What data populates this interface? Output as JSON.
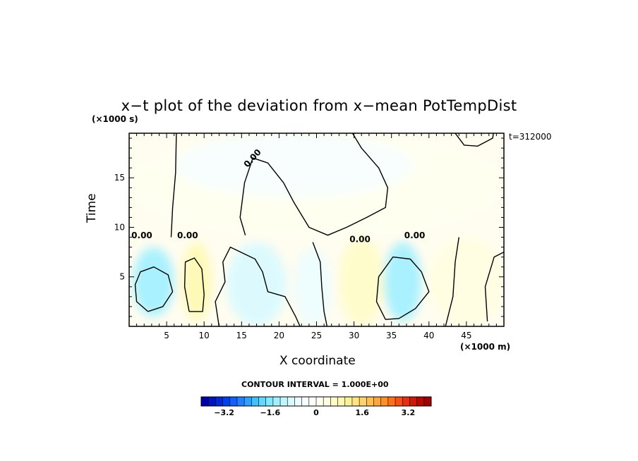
{
  "chart_data": {
    "type": "heatmap",
    "title": "x−t plot of the deviation from x−mean PotTempDist",
    "xlabel": "X coordinate",
    "ylabel": "Time",
    "x_unit_label": "(×1000 m)",
    "y_unit_label": "(×1000 s)",
    "time_stamp": "t=312000",
    "xlim": [
      0,
      50
    ],
    "ylim": [
      0,
      19.5
    ],
    "x_ticks": [
      5,
      10,
      15,
      20,
      25,
      30,
      35,
      40,
      45
    ],
    "y_ticks": [
      5,
      10,
      15
    ],
    "contour_interval_label": "CONTOUR INTERVAL = 1.000E+00",
    "contour_label": "0.00",
    "colorbar": {
      "range": [
        -4.0,
        4.0
      ],
      "tick_labels": [
        "−3.2",
        "−1.6",
        "0",
        "1.6",
        "3.2"
      ],
      "tick_values": [
        -3.2,
        -1.6,
        0,
        1.6,
        3.2
      ],
      "colors": [
        "#0000a8",
        "#0014c0",
        "#0028d8",
        "#0040f0",
        "#1060ff",
        "#2080ff",
        "#30a0ff",
        "#40c0ff",
        "#60d8ff",
        "#80e8ff",
        "#a0f0ff",
        "#c0f6ff",
        "#d8faff",
        "#ecfdff",
        "#f6feff",
        "#ffffff",
        "#fffff0",
        "#fffee0",
        "#fffcc8",
        "#fff8b0",
        "#fff098",
        "#ffe480",
        "#ffd468",
        "#ffc050",
        "#ffa838",
        "#ff9028",
        "#ff7018",
        "#f85010",
        "#e83010",
        "#d01808",
        "#b80800",
        "#a00000"
      ]
    },
    "field_regions": [
      {
        "name": "upper-band-mean",
        "x": [
          0,
          50
        ],
        "y": [
          9,
          19.5
        ],
        "value": 0.05
      },
      {
        "name": "upper-cool-lobe",
        "x": [
          6,
          38
        ],
        "y": [
          13,
          19.5
        ],
        "value": -0.3
      },
      {
        "name": "lower-cool-core-left",
        "x": [
          0.5,
          6
        ],
        "y": [
          1,
          8
        ],
        "value": -1.4
      },
      {
        "name": "lower-warm-band",
        "x": [
          7,
          11
        ],
        "y": [
          0.5,
          8.5
        ],
        "value": 0.9
      },
      {
        "name": "lower-cool-core-mid",
        "x": [
          13,
          21
        ],
        "y": [
          0,
          8.5
        ],
        "value": -0.8
      },
      {
        "name": "lower-cool-band",
        "x": [
          22,
          27
        ],
        "y": [
          0,
          8
        ],
        "value": -0.7
      },
      {
        "name": "lower-warm-zone",
        "x": [
          28,
          34
        ],
        "y": [
          0,
          9
        ],
        "value": 0.5
      },
      {
        "name": "lower-cool-core-right",
        "x": [
          34,
          39
        ],
        "y": [
          0.5,
          8.5
        ],
        "value": -1.3
      },
      {
        "name": "lower-warm-right",
        "x": [
          40,
          50
        ],
        "y": [
          0,
          9
        ],
        "value": 0.3
      }
    ],
    "zero_contours": [
      {
        "name": "upper-lobe-left-boundary",
        "points": [
          [
            5.6,
            9
          ],
          [
            5.8,
            12
          ],
          [
            6.2,
            15.5
          ],
          [
            6.3,
            19.5
          ]
        ]
      },
      {
        "name": "upper-lobe-right-boundary",
        "points": [
          [
            15.5,
            9.2
          ],
          [
            14.8,
            11
          ],
          [
            15.4,
            14.5
          ],
          [
            16.5,
            17
          ],
          [
            18.5,
            16.5
          ],
          [
            20.6,
            14.5
          ],
          [
            22,
            12.5
          ],
          [
            24,
            10
          ],
          [
            26.5,
            9.2
          ],
          [
            29,
            10
          ],
          [
            31.7,
            11
          ],
          [
            34.2,
            12
          ],
          [
            34.5,
            14
          ],
          [
            33.3,
            16
          ],
          [
            31,
            18
          ],
          [
            29.8,
            19.5
          ]
        ]
      },
      {
        "name": "top-right-closed-fragment",
        "points": [
          [
            43.5,
            19.5
          ],
          [
            44.7,
            18.3
          ],
          [
            46.5,
            18.2
          ],
          [
            48.5,
            19
          ],
          [
            48.6,
            19.5
          ]
        ]
      },
      {
        "name": "lower-left-core",
        "points": [
          [
            2.5,
            1.5
          ],
          [
            1,
            2.5
          ],
          [
            0.8,
            4.2
          ],
          [
            1.5,
            5.5
          ],
          [
            3.3,
            6
          ],
          [
            5.2,
            5.2
          ],
          [
            5.8,
            3.5
          ],
          [
            4.5,
            2
          ],
          [
            2.5,
            1.5
          ]
        ]
      },
      {
        "name": "lower-warm-band-outline",
        "points": [
          [
            8,
            1.5
          ],
          [
            7.4,
            4
          ],
          [
            7.5,
            6.5
          ],
          [
            8.7,
            6.9
          ],
          [
            9.7,
            5.8
          ],
          [
            10,
            3.2
          ],
          [
            9.8,
            1.5
          ],
          [
            8,
            1.5
          ]
        ]
      },
      {
        "name": "lower-mid-region",
        "points": [
          [
            12,
            0
          ],
          [
            11.5,
            2.5
          ],
          [
            12.8,
            4.5
          ],
          [
            12.5,
            6.5
          ],
          [
            13.5,
            8
          ],
          [
            16.8,
            6.8
          ],
          [
            17.8,
            5.5
          ],
          [
            18.5,
            3.5
          ],
          [
            20.8,
            3
          ],
          [
            22.2,
            1
          ],
          [
            22.8,
            0
          ]
        ]
      },
      {
        "name": "lower-center-thin-band",
        "points": [
          [
            24.5,
            8.5
          ],
          [
            25.5,
            6.5
          ],
          [
            25.7,
            4
          ],
          [
            26,
            1.5
          ],
          [
            26.4,
            0
          ]
        ]
      },
      {
        "name": "lower-right-core",
        "points": [
          [
            34.2,
            0.7
          ],
          [
            33,
            2.5
          ],
          [
            33.3,
            5
          ],
          [
            35.2,
            7
          ],
          [
            37.5,
            6.8
          ],
          [
            39,
            5.5
          ],
          [
            40,
            3.5
          ],
          [
            38.2,
            1.8
          ],
          [
            36,
            0.8
          ],
          [
            34.2,
            0.7
          ]
        ]
      },
      {
        "name": "lower-far-right",
        "points": [
          [
            42.2,
            0
          ],
          [
            43.2,
            3
          ],
          [
            43.5,
            6.5
          ],
          [
            44,
            9
          ]
        ]
      },
      {
        "name": "lower-edge-right",
        "points": [
          [
            47.8,
            0.5
          ],
          [
            47.5,
            4
          ],
          [
            48.7,
            7
          ],
          [
            50,
            7.5
          ]
        ]
      }
    ]
  }
}
